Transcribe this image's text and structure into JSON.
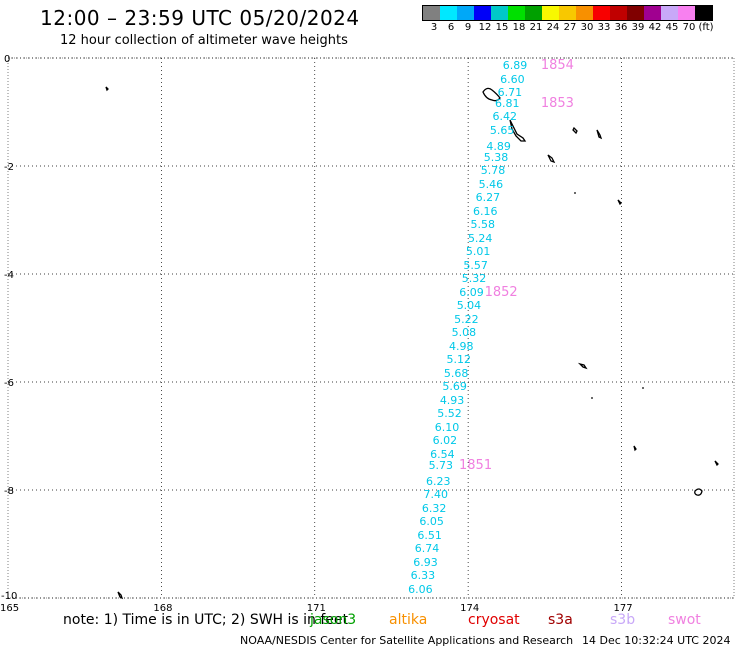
{
  "header": {
    "title": "12:00 – 23:59 UTC 05/20/2024",
    "subtitle": "12 hour collection of altimeter wave heights"
  },
  "legend": {
    "colors": [
      "#808080",
      "#00e8ff",
      "#00a8f8",
      "#0000f8",
      "#00c8c8",
      "#00e000",
      "#00a000",
      "#f8f800",
      "#f8c800",
      "#f89000",
      "#f80000",
      "#c00000",
      "#800000",
      "#a00090",
      "#c8a8f8",
      "#f880f0",
      "#000000"
    ],
    "labels": [
      "3",
      "6",
      "9",
      "12",
      "15",
      "18",
      "21",
      "24",
      "27",
      "30",
      "33",
      "36",
      "39",
      "42",
      "45",
      "70",
      "(ft)"
    ]
  },
  "axes": {
    "y_ticks": [
      "0",
      "-2",
      "-4",
      "-6",
      "-8",
      "-10"
    ],
    "x_ticks": [
      "165",
      "168",
      "171",
      "174",
      "177"
    ]
  },
  "map_data": {
    "lon_range": [
      165,
      179.2
    ],
    "lat_range": [
      -10,
      0
    ],
    "swh_icon": "altimeter-track",
    "swh": [
      {
        "v": "6.89",
        "lon": 174.95,
        "lat": -0.15
      },
      {
        "v": "6.60",
        "lon": 174.9,
        "lat": -0.4
      },
      {
        "v": "6.71",
        "lon": 174.85,
        "lat": -0.65
      },
      {
        "v": "6.81",
        "lon": 174.8,
        "lat": -0.85
      },
      {
        "v": "6.42",
        "lon": 174.75,
        "lat": -1.1
      },
      {
        "v": "5.65",
        "lon": 174.7,
        "lat": -1.35
      },
      {
        "v": "4.89",
        "lon": 174.63,
        "lat": -1.65
      },
      {
        "v": "5.38",
        "lon": 174.58,
        "lat": -1.85
      },
      {
        "v": "5.78",
        "lon": 174.52,
        "lat": -2.1
      },
      {
        "v": "5.46",
        "lon": 174.48,
        "lat": -2.35
      },
      {
        "v": "6.27",
        "lon": 174.42,
        "lat": -2.6
      },
      {
        "v": "6.16",
        "lon": 174.37,
        "lat": -2.85
      },
      {
        "v": "5.58",
        "lon": 174.32,
        "lat": -3.1
      },
      {
        "v": "5.24",
        "lon": 174.27,
        "lat": -3.35
      },
      {
        "v": "5.01",
        "lon": 174.23,
        "lat": -3.6
      },
      {
        "v": "5.57",
        "lon": 174.18,
        "lat": -3.85
      },
      {
        "v": "5.32",
        "lon": 174.15,
        "lat": -4.1
      },
      {
        "v": "6.09",
        "lon": 174.1,
        "lat": -4.35
      },
      {
        "v": "5.04",
        "lon": 174.05,
        "lat": -4.6
      },
      {
        "v": "5.22",
        "lon": 174.0,
        "lat": -4.85
      },
      {
        "v": "5.08",
        "lon": 173.95,
        "lat": -5.1
      },
      {
        "v": "4.98",
        "lon": 173.9,
        "lat": -5.35
      },
      {
        "v": "5.12",
        "lon": 173.85,
        "lat": -5.6
      },
      {
        "v": "5.68",
        "lon": 173.8,
        "lat": -5.85
      },
      {
        "v": "5.69",
        "lon": 173.77,
        "lat": -6.1
      },
      {
        "v": "4.93",
        "lon": 173.72,
        "lat": -6.35
      },
      {
        "v": "5.52",
        "lon": 173.67,
        "lat": -6.6
      },
      {
        "v": "6.10",
        "lon": 173.62,
        "lat": -6.85
      },
      {
        "v": "6.02",
        "lon": 173.58,
        "lat": -7.1
      },
      {
        "v": "6.54",
        "lon": 173.53,
        "lat": -7.35
      },
      {
        "v": "5.73",
        "lon": 173.5,
        "lat": -7.55
      },
      {
        "v": "6.23",
        "lon": 173.45,
        "lat": -7.85
      },
      {
        "v": "7.40",
        "lon": 173.4,
        "lat": -8.1
      },
      {
        "v": "6.32",
        "lon": 173.37,
        "lat": -8.35
      },
      {
        "v": "6.05",
        "lon": 173.32,
        "lat": -8.6
      },
      {
        "v": "6.51",
        "lon": 173.28,
        "lat": -8.85
      },
      {
        "v": "6.74",
        "lon": 173.23,
        "lat": -9.1
      },
      {
        "v": "6.93",
        "lon": 173.2,
        "lat": -9.35
      },
      {
        "v": "6.33",
        "lon": 173.15,
        "lat": -9.6
      },
      {
        "v": "6.06",
        "lon": 173.1,
        "lat": -9.85
      }
    ],
    "passes": [
      {
        "label": "1854",
        "lon": 175.5,
        "lat": -0.15
      },
      {
        "label": "1853",
        "lon": 175.5,
        "lat": -0.85
      },
      {
        "label": "1852",
        "lon": 174.4,
        "lat": -4.35
      },
      {
        "label": "1851",
        "lon": 173.9,
        "lat": -7.55
      }
    ]
  },
  "footer": {
    "note": "note:  1) Time is in UTC; 2) SWH is in feet",
    "satellites": [
      {
        "name": "jason3",
        "color": "#00a000"
      },
      {
        "name": "altika",
        "color": "#f89000"
      },
      {
        "name": "cryosat",
        "color": "#e00000"
      },
      {
        "name": "s3a",
        "color": "#a00000"
      },
      {
        "name": "s3b",
        "color": "#c8a8f8"
      },
      {
        "name": "swot",
        "color": "#f080e0"
      }
    ],
    "credit": "NOAA/NESDIS Center for Satellite Applications and Research",
    "timestamp": "14 Dec 10:32:24 UTC 2024"
  }
}
